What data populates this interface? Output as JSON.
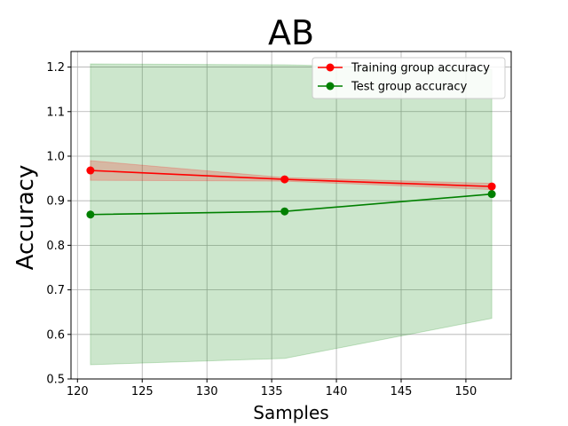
{
  "chart_data": {
    "type": "line",
    "title": "AB",
    "xlabel": "Samples",
    "ylabel": "Accuracy",
    "xlim": [
      119.5,
      153.5
    ],
    "ylim": [
      0.5,
      1.235
    ],
    "xticks": [
      120,
      125,
      130,
      135,
      140,
      145,
      150
    ],
    "yticks": [
      0.5,
      0.6,
      0.7,
      0.8,
      0.9,
      1.0,
      1.1,
      1.2
    ],
    "xtick_labels": [
      "120",
      "125",
      "130",
      "135",
      "140",
      "145",
      "150"
    ],
    "ytick_labels": [
      "0.5",
      "0.6",
      "0.7",
      "0.8",
      "0.9",
      "1.0",
      "1.1",
      "1.2"
    ],
    "grid": true,
    "legend_position": "top-right",
    "x": [
      121,
      136,
      152
    ],
    "series": [
      {
        "name": "Training group accuracy",
        "color": "#ff0000",
        "values": [
          0.968,
          0.948,
          0.932
        ],
        "band_low": [
          0.946,
          0.944,
          0.925
        ],
        "band_high": [
          0.99,
          0.952,
          0.939
        ]
      },
      {
        "name": "Test group accuracy",
        "color": "#008000",
        "values": [
          0.869,
          0.876,
          0.915
        ],
        "band_low": [
          0.532,
          0.546,
          0.636
        ],
        "band_high": [
          1.207,
          1.205,
          1.195
        ]
      }
    ]
  }
}
